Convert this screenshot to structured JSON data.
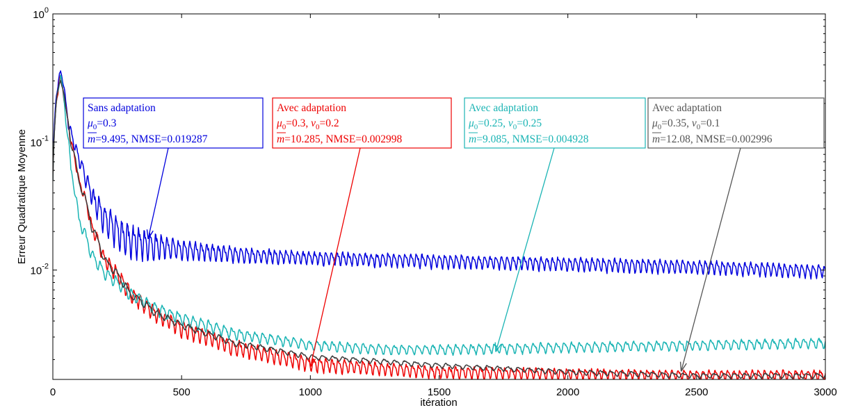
{
  "chart_data": {
    "type": "line",
    "xlabel": "itération",
    "ylabel": "Erreur Quadratique Moyenne",
    "xlim": [
      0,
      3000
    ],
    "ylim": [
      0.0014,
      1
    ],
    "yscale": "log",
    "x_ticks": [
      0,
      500,
      1000,
      1500,
      2000,
      2500,
      3000
    ],
    "y_ticks": [
      {
        "value": 0.01,
        "base": "10",
        "exp": "-2"
      },
      {
        "value": 0.1,
        "base": "10",
        "exp": "-1"
      },
      {
        "value": 1,
        "base": "10",
        "exp": "0"
      }
    ],
    "grid": false,
    "series": [
      {
        "id": "sans",
        "color": "#0000dd",
        "x": [
          0,
          15,
          30,
          40,
          50,
          60,
          80,
          100,
          130,
          160,
          200,
          250,
          300,
          400,
          500,
          600,
          800,
          1000,
          1500,
          2000,
          2500,
          3000
        ],
        "y": [
          0.06,
          0.25,
          0.35,
          0.3,
          0.2,
          0.14,
          0.1,
          0.075,
          0.05,
          0.035,
          0.025,
          0.02,
          0.017,
          0.0155,
          0.0145,
          0.0138,
          0.013,
          0.0125,
          0.0118,
          0.0112,
          0.0106,
          0.0098
        ],
        "osc": [
          0,
          0.06,
          0.06,
          0.06,
          0.07,
          0.07,
          0.08,
          0.1,
          0.15,
          0.2,
          0.24,
          0.28,
          0.3,
          0.22,
          0.16,
          0.14,
          0.12,
          0.11,
          0.11,
          0.11,
          0.11,
          0.11
        ],
        "period": 22
      },
      {
        "id": "red",
        "color": "#ee0000",
        "x": [
          0,
          15,
          30,
          50,
          70,
          100,
          150,
          200,
          300,
          400,
          500,
          700,
          1000,
          1500,
          2000,
          2500,
          3000
        ],
        "y": [
          0.05,
          0.22,
          0.32,
          0.18,
          0.1,
          0.05,
          0.022,
          0.012,
          0.0065,
          0.0045,
          0.0035,
          0.0025,
          0.00185,
          0.0016,
          0.00155,
          0.00152,
          0.00152
        ],
        "osc": [
          0,
          0.05,
          0.06,
          0.06,
          0.07,
          0.08,
          0.1,
          0.12,
          0.13,
          0.13,
          0.13,
          0.13,
          0.12,
          0.1,
          0.09,
          0.08,
          0.08
        ],
        "period": 24
      },
      {
        "id": "cyan",
        "color": "#1ab4b4",
        "x": [
          0,
          15,
          30,
          50,
          70,
          100,
          150,
          200,
          300,
          400,
          500,
          700,
          1000,
          1300,
          1500,
          2000,
          2500,
          3000
        ],
        "y": [
          0.05,
          0.22,
          0.33,
          0.15,
          0.06,
          0.025,
          0.013,
          0.0095,
          0.0065,
          0.005,
          0.0042,
          0.0032,
          0.0026,
          0.0024,
          0.0024,
          0.0025,
          0.0026,
          0.0027
        ],
        "osc": [
          0,
          0.05,
          0.05,
          0.06,
          0.07,
          0.09,
          0.1,
          0.1,
          0.1,
          0.1,
          0.1,
          0.09,
          0.08,
          0.08,
          0.08,
          0.08,
          0.08,
          0.08
        ],
        "period": 30
      },
      {
        "id": "grey",
        "color": "#3c3c3c",
        "x": [
          0,
          15,
          30,
          50,
          70,
          100,
          150,
          200,
          300,
          400,
          500,
          700,
          1000,
          1500,
          2000,
          2500,
          3000
        ],
        "y": [
          0.05,
          0.22,
          0.32,
          0.18,
          0.1,
          0.05,
          0.022,
          0.012,
          0.0065,
          0.0046,
          0.0037,
          0.0027,
          0.0021,
          0.0018,
          0.0016,
          0.0015,
          0.0015
        ],
        "osc": [
          0,
          0.04,
          0.05,
          0.05,
          0.06,
          0.06,
          0.07,
          0.07,
          0.07,
          0.06,
          0.05,
          0.05,
          0.04,
          0.04,
          0.04,
          0.04,
          0.04
        ],
        "period": 40
      }
    ],
    "annotations": [
      {
        "series": "sans",
        "color": "#0000dd",
        "line1": "Sans adaptation",
        "line2": {
          "mu_sym": "μ",
          "mu_sub": "0",
          "mu_val": "=0.3",
          "nu_sep": "",
          "nu_sym": "",
          "nu_sub": "",
          "nu_val": ""
        },
        "line3": {
          "m_sym": "m",
          "m_val": "=9.495",
          "nmse": ", NMSE=0.019287"
        },
        "arrow_to": [
          370,
          0.0175
        ]
      },
      {
        "series": "red",
        "color": "#ee0000",
        "line1": "Avec adaptation",
        "line2": {
          "mu_sym": "μ",
          "mu_sub": "0",
          "mu_val": "=0.3",
          "nu_sep": ", ",
          "nu_sym": "ν",
          "nu_sub": "0",
          "nu_val": "=0.2"
        },
        "line3": {
          "m_sym": "m",
          "m_val": "=10.285",
          "nmse": ", NMSE=0.002998"
        },
        "arrow_to": [
          1000,
          0.00175
        ]
      },
      {
        "series": "cyan",
        "color": "#1ab4b4",
        "line1": "Avec adaptation",
        "line2": {
          "mu_sym": "μ",
          "mu_sub": "0",
          "mu_val": "=0.25",
          "nu_sep": ", ",
          "nu_sym": "ν",
          "nu_sub": "0",
          "nu_val": "=0.25"
        },
        "line3": {
          "m_sym": "m",
          "m_val": "=9.085",
          "nmse": ", NMSE=0.004928"
        },
        "arrow_to": [
          1720,
          0.0023
        ]
      },
      {
        "series": "grey",
        "color": "#555555",
        "line1": "Avec adaptation",
        "line2": {
          "mu_sym": "μ",
          "mu_sub": "0",
          "mu_val": "=0.35",
          "nu_sep": ", ",
          "nu_sym": "ν",
          "nu_sub": "0",
          "nu_val": "=0.1"
        },
        "line3": {
          "m_sym": "m",
          "m_val": "=12.08",
          "nmse": ", NMSE=0.002996"
        },
        "arrow_to": [
          2440,
          0.00162
        ]
      }
    ]
  }
}
